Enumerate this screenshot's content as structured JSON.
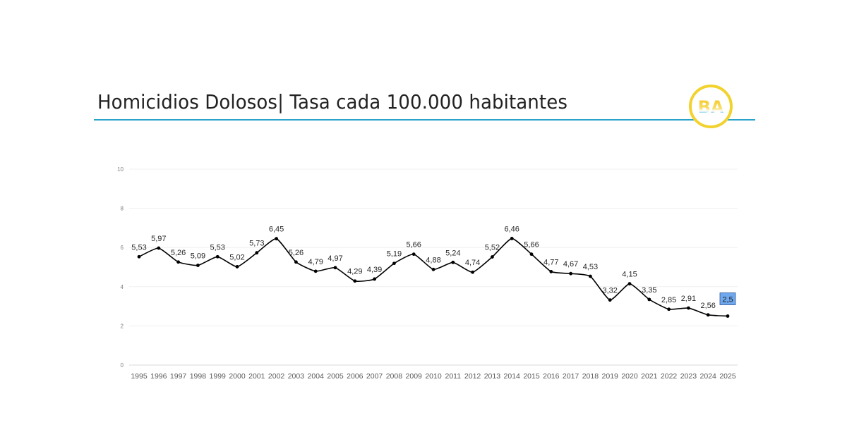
{
  "header": {
    "title": "Homicidios Dolosos| Tasa cada 100.000 habitantes",
    "logo_text": "BA",
    "accent_line_color": "#29a3c9",
    "logo_ring_color": "#f2d22e"
  },
  "chart_data": {
    "type": "line",
    "title": "Homicidios Dolosos| Tasa cada 100.000 habitantes",
    "xlabel": "",
    "ylabel": "",
    "ylim": [
      0,
      10
    ],
    "yticks": [
      0,
      2,
      4,
      6,
      8,
      10
    ],
    "grid": true,
    "legend": null,
    "categories": [
      "1995",
      "1996",
      "1997",
      "1998",
      "1999",
      "2000",
      "2001",
      "2002",
      "2003",
      "2004",
      "2005",
      "2006",
      "2007",
      "2008",
      "2009",
      "2010",
      "2011",
      "2012",
      "2013",
      "2014",
      "2015",
      "2016",
      "2017",
      "2018",
      "2019",
      "2020",
      "2021",
      "2022",
      "2023",
      "2024",
      "2025"
    ],
    "series": [
      {
        "name": "Tasa cada 100.000 habitantes",
        "values": [
          5.53,
          5.97,
          5.26,
          5.09,
          5.53,
          5.02,
          5.73,
          6.45,
          5.26,
          4.79,
          4.97,
          4.29,
          4.39,
          5.19,
          5.66,
          4.88,
          5.24,
          4.74,
          5.52,
          6.46,
          5.66,
          4.77,
          4.67,
          4.53,
          3.32,
          4.15,
          3.35,
          2.85,
          2.91,
          2.56,
          2.5
        ],
        "labels": [
          "5,53",
          "5,97",
          "5,26",
          "5,09",
          "5,53",
          "5,02",
          "5,73",
          "6,45",
          "5,26",
          "4,79",
          "4,97",
          "4,29",
          "4,39",
          "5,19",
          "5,66",
          "4,88",
          "5,24",
          "4,74",
          "5,52",
          "6,46",
          "5,66",
          "4,77",
          "4,67",
          "4,53",
          "3,32",
          "4,15",
          "3,35",
          "2,85",
          "2,91",
          "2,56",
          "2,5"
        ],
        "color": "#000000",
        "smooth": true
      }
    ],
    "annotations": [
      {
        "category": "2025",
        "label": "2,5",
        "highlight_color": "#6fa8ee",
        "border_color": "#2f5597"
      }
    ]
  }
}
